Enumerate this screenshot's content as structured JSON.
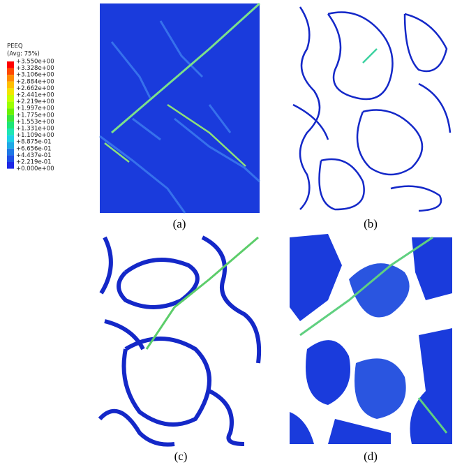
{
  "legend": {
    "title": "PEEQ",
    "subtitle": "(Avg: 75%)",
    "labels": [
      "+3.550e+00",
      "+3.328e+00",
      "+3.106e+00",
      "+2.884e+00",
      "+2.662e+00",
      "+2.441e+00",
      "+2.219e+00",
      "+1.997e+00",
      "+1.775e+00",
      "+1.553e+00",
      "+1.331e+00",
      "+1.109e+00",
      "+8.875e-01",
      "+6.656e-01",
      "+4.437e-01",
      "+2.219e-01",
      "+0.000e+00"
    ],
    "colors": [
      "#ff0000",
      "#ff4a00",
      "#ff8c00",
      "#ffbf00",
      "#f2e600",
      "#c8ff00",
      "#9dff00",
      "#6cf200",
      "#3ce63c",
      "#1ee678",
      "#1ee6b4",
      "#1ed2e6",
      "#1eaae6",
      "#1e78e6",
      "#1e50e6",
      "#1e28e6"
    ]
  },
  "panels": [
    {
      "caption": "(a)"
    },
    {
      "caption": "(b)"
    },
    {
      "caption": "(c)"
    },
    {
      "caption": "(d)"
    }
  ]
}
